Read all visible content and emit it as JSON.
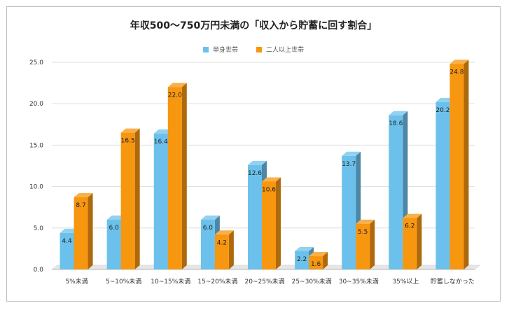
{
  "chart_data": {
    "type": "bar",
    "title": "年収500～750万円未満の「収入から貯蓄に回す割合」",
    "categories": [
      "5%未満",
      "5~10%未満",
      "10~15%未満",
      "15~20%未満",
      "20~25%未満",
      "25~30%未満",
      "30~35%未満",
      "35%以上",
      "貯蓄しなかった"
    ],
    "series": [
      {
        "name": "単身世帯",
        "values": [
          4.4,
          6.0,
          16.4,
          6.0,
          12.6,
          2.2,
          13.7,
          18.6,
          20.2
        ],
        "color": "#6cc1ec"
      },
      {
        "name": "二人以上世帯",
        "values": [
          8.7,
          16.5,
          22.0,
          4.2,
          10.6,
          1.6,
          5.5,
          6.2,
          24.8
        ],
        "color": "#f7960f"
      }
    ],
    "data_labels": [
      [
        "4.4",
        "6.0",
        "16.4",
        "6.0",
        "12.6",
        "2.2",
        "13.7",
        "18.6",
        "20.2"
      ],
      [
        "8.7",
        "16.5",
        "22.0",
        "4.2",
        "10.6",
        "1.6",
        "5.5",
        "6.2",
        "24.8"
      ]
    ],
    "ylim": [
      0,
      25
    ],
    "yticks": [
      "0.0",
      "5.0",
      "10.0",
      "15.0",
      "20.0",
      "25.0"
    ],
    "grid": true,
    "legend_position": "top-center"
  }
}
